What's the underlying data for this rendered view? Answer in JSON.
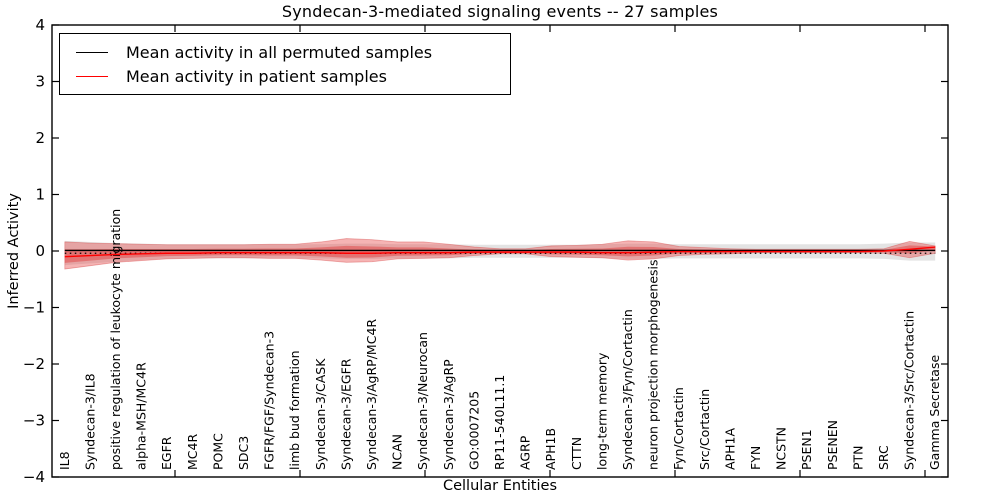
{
  "figure": {
    "background": "#ffffff",
    "border_color": "#000000"
  },
  "chart_data": {
    "type": "line",
    "title": "Syndecan-3-mediated signaling events -- 27 samples",
    "xlabel": "Cellular Entities",
    "ylabel": "Inferred Activity",
    "ylim": [
      -4,
      4
    ],
    "yticks": [
      -4,
      -3,
      -2,
      -1,
      0,
      1,
      2,
      3,
      4
    ],
    "grid": false,
    "tick_direction": "in",
    "categories": [
      "IL8",
      "Syndecan-3/IL8",
      "positive regulation of leukocyte migration",
      "alpha-MSH/MC4R",
      "EGFR",
      "MC4R",
      "POMC",
      "SDC3",
      "FGFR/FGF/Syndecan-3",
      "limb bud formation",
      "Syndecan-3/CASK",
      "Syndecan-3/EGFR",
      "Syndecan-3/AgRP/MC4R",
      "NCAN",
      "Syndecan-3/Neurocan",
      "Syndecan-3/AgRP",
      "GO:0007205",
      "RP11-540L11.1",
      "AGRP",
      "APH1B",
      "CTTN",
      "long-term memory",
      "Syndecan-3/Fyn/Cortactin",
      "neuron projection morphogenesis",
      "Fyn/Cortactin",
      "Src/Cortactin",
      "APH1A",
      "FYN",
      "NCSTN",
      "PSEN1",
      "PSENEN",
      "PTN",
      "SRC",
      "Syndecan-3/Src/Cortactin",
      "Gamma Secretase"
    ],
    "series": [
      {
        "name": "Mean activity in all permuted samples",
        "color": "#000000",
        "style": "solid",
        "values": [
          0.01,
          0.01,
          0.01,
          0.01,
          0.01,
          0.01,
          0.01,
          0.01,
          0.01,
          0.01,
          0.01,
          0.01,
          0.01,
          0.01,
          0.01,
          0.01,
          0.01,
          0.01,
          0.01,
          0.01,
          0.01,
          0.01,
          0.01,
          0.01,
          0.01,
          0.01,
          0.01,
          0.01,
          0.01,
          0.01,
          0.01,
          0.01,
          0.01,
          0.01,
          0.01
        ]
      },
      {
        "name": "Mean activity in patient samples",
        "color": "#ff0000",
        "style": "solid",
        "values": [
          -0.1,
          -0.08,
          -0.06,
          -0.05,
          -0.04,
          -0.04,
          -0.03,
          -0.03,
          -0.03,
          -0.03,
          -0.03,
          -0.04,
          -0.04,
          -0.03,
          -0.03,
          -0.03,
          -0.02,
          -0.02,
          -0.02,
          -0.02,
          -0.02,
          -0.03,
          -0.03,
          -0.02,
          -0.01,
          -0.01,
          -0.01,
          -0.01,
          -0.01,
          -0.01,
          -0.01,
          -0.01,
          0.0,
          0.03,
          0.07
        ]
      }
    ],
    "reference_line": {
      "value": -0.04,
      "color": "#000000",
      "style": "dotted"
    },
    "bands": [
      {
        "name": "permuted samples activity range",
        "color": "rgba(0,0,0,0.11)",
        "hi": [
          0.18,
          0.16,
          0.14,
          0.13,
          0.12,
          0.12,
          0.12,
          0.12,
          0.12,
          0.12,
          0.12,
          0.13,
          0.13,
          0.12,
          0.12,
          0.12,
          0.11,
          0.11,
          0.11,
          0.11,
          0.11,
          0.12,
          0.13,
          0.13,
          0.12,
          0.12,
          0.12,
          0.12,
          0.12,
          0.12,
          0.12,
          0.12,
          0.13,
          0.15,
          0.15
        ],
        "lo": [
          -0.25,
          -0.22,
          -0.19,
          -0.16,
          -0.14,
          -0.13,
          -0.13,
          -0.13,
          -0.13,
          -0.13,
          -0.13,
          -0.14,
          -0.14,
          -0.13,
          -0.13,
          -0.13,
          -0.12,
          -0.12,
          -0.12,
          -0.12,
          -0.12,
          -0.13,
          -0.14,
          -0.14,
          -0.13,
          -0.13,
          -0.13,
          -0.13,
          -0.13,
          -0.13,
          -0.13,
          -0.13,
          -0.14,
          -0.17,
          -0.17
        ]
      },
      {
        "name": "patient samples activity range",
        "color": "rgba(231,76,76,0.42)",
        "inner_color": "rgba(224,48,48,0.42)",
        "inner_scale": 0.5,
        "hi": [
          0.16,
          0.14,
          0.13,
          0.12,
          0.11,
          0.11,
          0.11,
          0.11,
          0.12,
          0.12,
          0.16,
          0.22,
          0.2,
          0.16,
          0.16,
          0.12,
          0.07,
          0.04,
          0.04,
          0.09,
          0.1,
          0.12,
          0.18,
          0.16,
          0.08,
          0.06,
          0.04,
          0.03,
          0.03,
          0.03,
          0.03,
          0.03,
          0.04,
          0.17,
          0.09
        ],
        "lo": [
          -0.32,
          -0.26,
          -0.2,
          -0.17,
          -0.14,
          -0.13,
          -0.12,
          -0.12,
          -0.13,
          -0.13,
          -0.16,
          -0.2,
          -0.19,
          -0.14,
          -0.13,
          -0.12,
          -0.08,
          -0.05,
          -0.05,
          -0.1,
          -0.11,
          -0.12,
          -0.16,
          -0.14,
          -0.08,
          -0.06,
          -0.05,
          -0.03,
          -0.03,
          -0.03,
          -0.03,
          -0.03,
          -0.04,
          -0.12,
          -0.04
        ]
      }
    ],
    "legend": {
      "position": "upper left",
      "entries": [
        {
          "label": "Mean activity in all permuted samples",
          "color": "#000000"
        },
        {
          "label": "Mean activity in patient samples",
          "color": "#ff0000"
        }
      ]
    }
  }
}
